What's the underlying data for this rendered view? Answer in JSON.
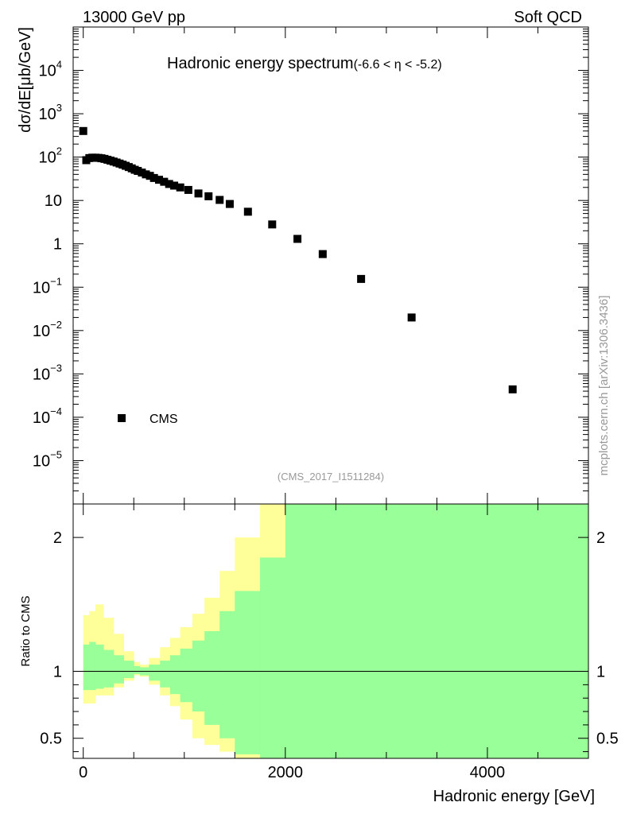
{
  "header": {
    "left": "13000 GeV pp",
    "right": "Soft QCD"
  },
  "watermark": "mcplots.cern.ch [arXiv:1306.3436]",
  "chart_data": [
    {
      "type": "scatter",
      "title": "Hadronic energy spectrum",
      "title_suffix": "(-6.6 < η < -5.2)",
      "ylabel": "dσ/dE[μb/GeV]",
      "xlabel": "",
      "analysis": "(CMS_2017_I1511284)",
      "yscale": "log",
      "xlim": [
        -100,
        5000
      ],
      "ylim_log10": [
        -6,
        5
      ],
      "ytick_labels": [
        {
          "base": "10",
          "exp": "4"
        },
        {
          "base": "10",
          "exp": "3"
        },
        {
          "base": "10",
          "exp": "2"
        },
        {
          "base": "10",
          "exp": ""
        },
        {
          "base": "1",
          "exp": ""
        },
        {
          "base": "10",
          "exp": "−1"
        },
        {
          "base": "10",
          "exp": "−2"
        },
        {
          "base": "10",
          "exp": "−3"
        },
        {
          "base": "10",
          "exp": "−4"
        },
        {
          "base": "10",
          "exp": "−5"
        }
      ],
      "legend": {
        "label": "CMS",
        "placement": "bottom-left"
      },
      "series": [
        {
          "name": "CMS",
          "color": "#000000",
          "points": [
            [
              0,
              400
            ],
            [
              30,
              85
            ],
            [
              60,
              95
            ],
            [
              90,
              97
            ],
            [
              120,
              97
            ],
            [
              150,
              96
            ],
            [
              180,
              94
            ],
            [
              210,
              91
            ],
            [
              240,
              87
            ],
            [
              270,
              83
            ],
            [
              300,
              79
            ],
            [
              330,
              75
            ],
            [
              360,
              71
            ],
            [
              390,
              67
            ],
            [
              420,
              63
            ],
            [
              450,
              59
            ],
            [
              480,
              55
            ],
            [
              510,
              51
            ],
            [
              540,
              48
            ],
            [
              580,
              44
            ],
            [
              620,
              40
            ],
            [
              660,
              37
            ],
            [
              700,
              33
            ],
            [
              750,
              30
            ],
            [
              800,
              27
            ],
            [
              850,
              24
            ],
            [
              900,
              22
            ],
            [
              960,
              20
            ],
            [
              1040,
              17.5
            ],
            [
              1140,
              14.5
            ],
            [
              1240,
              12.5
            ],
            [
              1350,
              10.3
            ],
            [
              1450,
              8.3
            ],
            [
              1630,
              5.5
            ],
            [
              1870,
              2.8
            ],
            [
              2120,
              1.3
            ],
            [
              2370,
              0.58
            ],
            [
              2750,
              0.155
            ],
            [
              3250,
              0.02
            ],
            [
              4250,
              0.00044
            ]
          ]
        }
      ]
    },
    {
      "type": "area",
      "title": "",
      "ylabel": "Ratio to CMS",
      "xlabel": "Hadronic energy [GeV]",
      "xlim": [
        -100,
        5000
      ],
      "ylim": [
        0.35,
        2.25
      ],
      "x_ticks": [
        "0",
        "2000",
        "4000"
      ],
      "y_ticks_left": [
        "2",
        "1",
        "0.5"
      ],
      "y_ticks_right": [
        "2",
        "1",
        "0.5"
      ],
      "reference_line": 1,
      "band_colors": {
        "outer": "#ffff99",
        "inner": "#99ff99"
      },
      "outer_band": {
        "x": [
          0,
          60,
          120,
          200,
          300,
          400,
          500,
          560,
          650,
          760,
          860,
          960,
          1080,
          1200,
          1350,
          1500,
          1750,
          2000,
          2250,
          2700,
          5000
        ],
        "lo": [
          0.76,
          0.76,
          0.82,
          0.82,
          0.88,
          0.93,
          0.97,
          0.96,
          0.9,
          0.82,
          0.74,
          0.64,
          0.5,
          0.45,
          0.4,
          0.35,
          0.35,
          0.35,
          0.35,
          0.35,
          0.35
        ],
        "hi": [
          1.42,
          1.45,
          1.5,
          1.4,
          1.28,
          1.15,
          1.07,
          1.05,
          1.1,
          1.18,
          1.25,
          1.33,
          1.43,
          1.55,
          1.75,
          2.0,
          2.25,
          2.25,
          2.25,
          2.25,
          2.25
        ]
      },
      "inner_band": {
        "x": [
          0,
          60,
          120,
          200,
          300,
          400,
          500,
          560,
          650,
          760,
          860,
          960,
          1080,
          1200,
          1350,
          1500,
          1750,
          2000,
          2250,
          2700,
          5000
        ],
        "lo": [
          0.86,
          0.86,
          0.87,
          0.88,
          0.91,
          0.95,
          0.98,
          0.97,
          0.93,
          0.88,
          0.83,
          0.77,
          0.7,
          0.6,
          0.5,
          0.38,
          0.35,
          0.35,
          0.35,
          0.35,
          0.35
        ],
        "hi": [
          1.2,
          1.22,
          1.2,
          1.16,
          1.12,
          1.08,
          1.04,
          1.03,
          1.05,
          1.08,
          1.12,
          1.17,
          1.23,
          1.3,
          1.45,
          1.6,
          1.85,
          2.25,
          2.25,
          2.25,
          2.25
        ]
      }
    }
  ]
}
